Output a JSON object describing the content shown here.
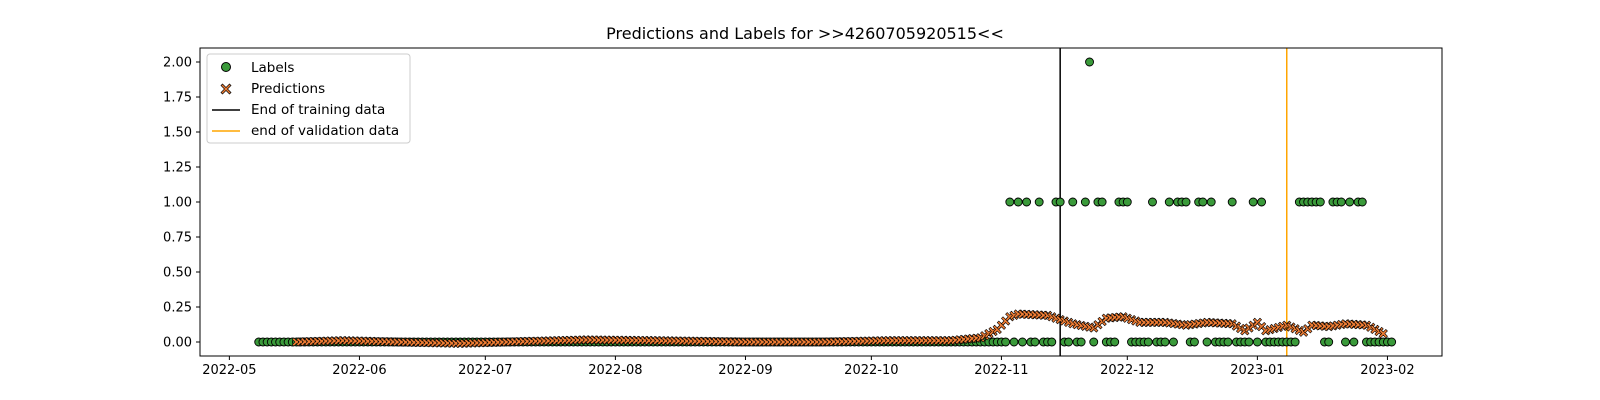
{
  "chart_data": {
    "type": "scatter",
    "title": "Predictions and Labels for >>4260705920515<<",
    "xlabel": "",
    "ylabel": "",
    "x_axis_type": "date",
    "xlim": [
      "2022-04-24",
      "2023-02-14"
    ],
    "ylim": [
      -0.1,
      2.1
    ],
    "x_ticks": [
      "2022-05-01",
      "2022-06-01",
      "2022-07-01",
      "2022-08-01",
      "2022-09-01",
      "2022-10-01",
      "2022-11-01",
      "2022-12-01",
      "2023-01-01",
      "2023-02-01"
    ],
    "x_tick_labels": [
      "2022-05",
      "2022-06",
      "2022-07",
      "2022-08",
      "2022-09",
      "2022-10",
      "2022-11",
      "2022-12",
      "2023-01",
      "2023-02"
    ],
    "y_ticks": [
      0.0,
      0.25,
      0.5,
      0.75,
      1.0,
      1.25,
      1.5,
      1.75,
      2.0
    ],
    "y_tick_labels": [
      "0.00",
      "0.25",
      "0.50",
      "0.75",
      "1.00",
      "1.25",
      "1.50",
      "1.75",
      "2.00"
    ],
    "grid": false,
    "legend_position": "top-left",
    "colors": {
      "labels_fill": "#3a9a3a",
      "predictions_fill": "#ef7d34",
      "marker_edge": "#000000",
      "training_line": "#000000",
      "validation_line": "#ffa500"
    },
    "legend": [
      {
        "label": "Labels",
        "marker": "circle"
      },
      {
        "label": "Predictions",
        "marker": "x"
      },
      {
        "label": "End of training data",
        "marker": "line-black"
      },
      {
        "label": "end of validation data",
        "marker": "line-orange"
      }
    ],
    "vlines": [
      {
        "name": "End of training data",
        "x": "2022-11-15",
        "color": "#000000"
      },
      {
        "name": "end of validation data",
        "x": "2023-01-08",
        "color": "#ffa500"
      }
    ],
    "labels_series": {
      "name": "Labels",
      "start": "2022-05-08",
      "end": "2023-02-02",
      "default_value": 0,
      "ones": [
        "2022-11-03",
        "2022-11-05",
        "2022-11-07",
        "2022-11-10",
        "2022-11-14",
        "2022-11-15",
        "2022-11-18",
        "2022-11-21",
        "2022-11-24",
        "2022-11-25",
        "2022-11-29",
        "2022-11-30",
        "2022-12-01",
        "2022-12-07",
        "2022-12-11",
        "2022-12-13",
        "2022-12-14",
        "2022-12-15",
        "2022-12-18",
        "2022-12-19",
        "2022-12-21",
        "2022-12-26",
        "2022-12-31",
        "2023-01-02",
        "2023-01-11",
        "2023-01-12",
        "2023-01-13",
        "2023-01-14",
        "2023-01-15",
        "2023-01-16",
        "2023-01-19",
        "2023-01-20",
        "2023-01-21",
        "2023-01-23",
        "2023-01-25",
        "2023-01-26"
      ],
      "twos": [
        "2022-11-22"
      ]
    },
    "predictions_series": {
      "name": "Predictions",
      "start": "2022-05-17",
      "end": "2023-01-31",
      "keypoints": [
        [
          "2022-05-17",
          0.0
        ],
        [
          "2022-05-28",
          0.01
        ],
        [
          "2022-06-10",
          0.0
        ],
        [
          "2022-06-25",
          -0.01
        ],
        [
          "2022-07-12",
          0.005
        ],
        [
          "2022-07-25",
          0.015
        ],
        [
          "2022-08-10",
          0.01
        ],
        [
          "2022-09-01",
          0.0
        ],
        [
          "2022-09-20",
          0.0
        ],
        [
          "2022-10-05",
          0.01
        ],
        [
          "2022-10-20",
          0.01
        ],
        [
          "2022-10-27",
          0.03
        ],
        [
          "2022-10-31",
          0.09
        ],
        [
          "2022-11-03",
          0.18
        ],
        [
          "2022-11-05",
          0.2
        ],
        [
          "2022-11-12",
          0.19
        ],
        [
          "2022-11-18",
          0.13
        ],
        [
          "2022-11-23",
          0.1
        ],
        [
          "2022-11-26",
          0.17
        ],
        [
          "2022-11-30",
          0.18
        ],
        [
          "2022-12-04",
          0.14
        ],
        [
          "2022-12-10",
          0.14
        ],
        [
          "2022-12-15",
          0.12
        ],
        [
          "2022-12-20",
          0.14
        ],
        [
          "2022-12-26",
          0.13
        ],
        [
          "2022-12-29",
          0.08
        ],
        [
          "2023-01-01",
          0.14
        ],
        [
          "2023-01-03",
          0.08
        ],
        [
          "2023-01-08",
          0.12
        ],
        [
          "2023-01-12",
          0.07
        ],
        [
          "2023-01-14",
          0.12
        ],
        [
          "2023-01-18",
          0.11
        ],
        [
          "2023-01-22",
          0.13
        ],
        [
          "2023-01-27",
          0.12
        ],
        [
          "2023-01-29",
          0.09
        ],
        [
          "2023-01-31",
          0.06
        ]
      ]
    }
  }
}
